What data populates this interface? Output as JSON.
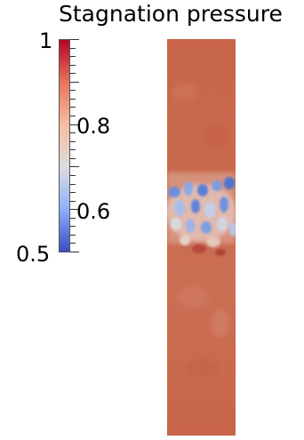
{
  "title": "Stagnation pressure",
  "colorbar": {
    "range": [
      0.5,
      1
    ],
    "labels": {
      "max": "1",
      "mid_high": "0.8",
      "mid_low": "0.6",
      "min": "0.5"
    },
    "colormap": "cool-to-warm",
    "colors": {
      "low": "#3b4cc0",
      "mid": "#dddcdc",
      "high": "#b40426"
    }
  },
  "field": {
    "background_value_color": "#c8644a",
    "mixing_layer_color_low": "#5a7fd6",
    "mixing_layer_color_mid": "#c9d2e6"
  }
}
